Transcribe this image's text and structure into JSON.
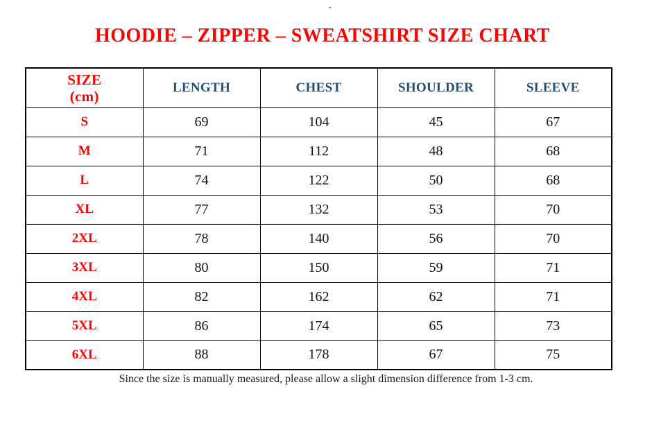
{
  "page": {
    "top_dot": ".",
    "title": "HOODIE – ZIPPER – SWEATSHIRT SIZE CHART",
    "footnote": "Since the size is manually measured, please allow a slight dimension difference from 1-3 cm."
  },
  "colors": {
    "title_red": "#ff0000",
    "header_blue": "#1f4e79",
    "text_black": "#111111",
    "border_black": "#000000"
  },
  "table": {
    "size_header": {
      "line1": "SIZE",
      "line2": "(cm)"
    },
    "columns": [
      "LENGTH",
      "CHEST",
      "SHOULDER",
      "SLEEVE"
    ],
    "rows": [
      {
        "size": "S",
        "length": "69",
        "chest": "104",
        "shoulder": "45",
        "sleeve": "67"
      },
      {
        "size": "M",
        "length": "71",
        "chest": "112",
        "shoulder": "48",
        "sleeve": "68"
      },
      {
        "size": "L",
        "length": "74",
        "chest": "122",
        "shoulder": "50",
        "sleeve": "68"
      },
      {
        "size": "XL",
        "length": "77",
        "chest": "132",
        "shoulder": "53",
        "sleeve": "70"
      },
      {
        "size": "2XL",
        "length": "78",
        "chest": "140",
        "shoulder": "56",
        "sleeve": "70"
      },
      {
        "size": "3XL",
        "length": "80",
        "chest": "150",
        "shoulder": "59",
        "sleeve": "71"
      },
      {
        "size": "4XL",
        "length": "82",
        "chest": "162",
        "shoulder": "62",
        "sleeve": "71"
      },
      {
        "size": "5XL",
        "length": "86",
        "chest": "174",
        "shoulder": "65",
        "sleeve": "73"
      },
      {
        "size": "6XL",
        "length": "88",
        "chest": "178",
        "shoulder": "67",
        "sleeve": "75"
      }
    ]
  }
}
